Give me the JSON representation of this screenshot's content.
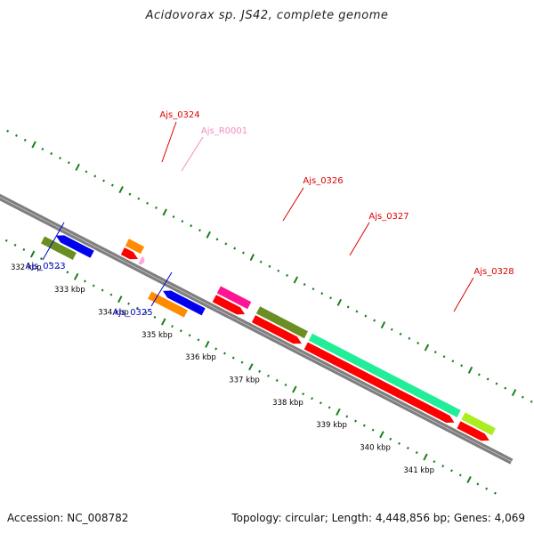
{
  "title": "Acidovorax sp. JS42, complete genome",
  "footer": {
    "accession": "Accession: NC_008782",
    "topology": "Topology: circular; Length: 4,448,856 bp; Genes: 4,069"
  },
  "colors": {
    "backbone": "#7f7f7f",
    "tick": "#1a7f1a",
    "forward_label": "#dd0000",
    "reverse_label": "#0000cc",
    "rna_label": "#f08cc0",
    "scale_text": "#000000"
  },
  "scale": {
    "unit": "kbp",
    "labels": [
      "332 kbp",
      "333 kbp",
      "334 kbp",
      "335 kbp",
      "336 kbp",
      "337 kbp",
      "338 kbp",
      "339 kbp",
      "340 kbp",
      "341 kbp"
    ]
  },
  "genes": [
    {
      "id": "Ajs_0323",
      "strand": "reverse",
      "start_kbp": 332.2,
      "end_kbp": 332.9,
      "arrow_color": "#0000ee",
      "cog_color": "#6b8e23",
      "label_color": "#0000cc"
    },
    {
      "id": "Ajs_0324",
      "strand": "forward",
      "start_kbp": 333.6,
      "end_kbp": 333.95,
      "arrow_color": "#ff0000",
      "cog_color": "#ff8c00",
      "label_color": "#dd0000"
    },
    {
      "id": "Ajs_R0001",
      "strand": "forward",
      "start_kbp": 334.0,
      "end_kbp": 334.1,
      "arrow_color": "#ffaadd",
      "cog_color": null,
      "label_color": "#f08cc0"
    },
    {
      "id": "Ajs_0325",
      "strand": "reverse",
      "start_kbp": 334.65,
      "end_kbp": 335.45,
      "arrow_color": "#0000ee",
      "cog_color": "#ff8c00",
      "label_color": "#0000cc"
    },
    {
      "id": "Ajs_0326",
      "strand": "forward",
      "start_kbp": 335.7,
      "end_kbp": 336.4,
      "arrow_color": "#ff0000",
      "cog_color": "#ff1493",
      "label_color": "#dd0000"
    },
    {
      "id": "Ajs_0327",
      "strand": "forward",
      "start_kbp": 336.6,
      "end_kbp": 337.7,
      "arrow_color": "#ff0000",
      "cog_color": "#6b8e23",
      "label_color": "#dd0000"
    },
    {
      "id": "Ajs_0328",
      "strand": "forward",
      "start_kbp": 337.8,
      "end_kbp": 341.2,
      "arrow_color": "#ff0000",
      "cog_color": "#22ee99",
      "label_color": "#dd0000"
    },
    {
      "id": "",
      "strand": "forward",
      "start_kbp": 341.3,
      "end_kbp": 342.0,
      "arrow_color": "#ff0000",
      "cog_color": "#aaee22",
      "label_color": "#dd0000"
    }
  ]
}
